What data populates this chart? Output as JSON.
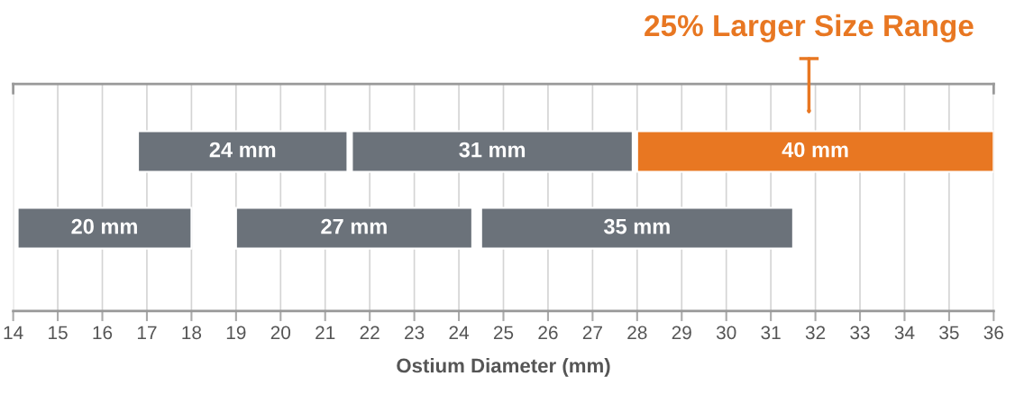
{
  "chart_data": {
    "type": "bar",
    "orientation": "horizontal",
    "xlabel": "Ostium Diameter (mm)",
    "categories": [
      null,
      null
    ],
    "series": [
      {
        "name": "24 mm",
        "color": "#6b727a",
        "base": [
          16.8,
          null
        ],
        "values": [
          4.7,
          null
        ]
      },
      {
        "name": "31 mm",
        "color": "#6b727a",
        "base": [
          21.6,
          null
        ],
        "values": [
          6.3,
          null
        ]
      },
      {
        "name": "40 mm",
        "color": "#e87722",
        "base": [
          28.0,
          null
        ],
        "values": [
          8.0,
          null
        ]
      },
      {
        "name": "20 mm",
        "color": "#6b727a",
        "base": [
          null,
          14.1
        ],
        "values": [
          null,
          3.9
        ]
      },
      {
        "name": "27 mm",
        "color": "#6b727a",
        "base": [
          null,
          19.0
        ],
        "values": [
          null,
          5.3
        ]
      },
      {
        "name": "35 mm",
        "color": "#6b727a",
        "base": [
          null,
          24.5
        ],
        "values": [
          null,
          7.0
        ]
      }
    ],
    "xlim": [
      14,
      36
    ],
    "xticks": [
      14,
      15,
      16,
      17,
      18,
      19,
      20,
      21,
      22,
      23,
      24,
      25,
      26,
      27,
      28,
      29,
      30,
      31,
      32,
      33,
      34,
      35,
      36
    ],
    "grid": "x",
    "tick_labels": "x",
    "legend": false,
    "annotations": [
      "25% Larger Size Range"
    ]
  }
}
